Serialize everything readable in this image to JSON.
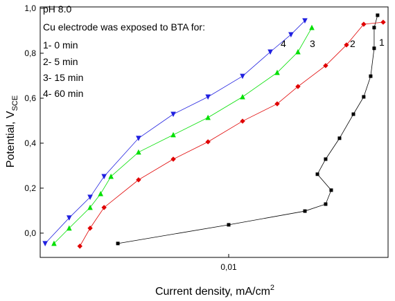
{
  "chart_data": {
    "type": "scatter",
    "xlabel": {
      "text": "Current density, mA/cm",
      "sup": "2"
    },
    "ylabel": {
      "text": "Potential, V",
      "sub": "SCE"
    },
    "annotations": [
      "pH 8.0",
      "Cu electrode was exposed to BTA for:",
      "1- 0 min",
      "2- 5 min",
      "3- 15 min",
      "4- 60 min"
    ],
    "xscale": "log",
    "xlim": [
      0.00225,
      0.0353
    ],
    "ylim": [
      -0.108,
      1.006
    ],
    "xticks": [
      {
        "value": 0.01,
        "label": "0,01"
      }
    ],
    "yticks": [
      {
        "value": 0,
        "label": "0,0"
      },
      {
        "value": 0.2,
        "label": "0,2"
      },
      {
        "value": 0.4,
        "label": "0,4"
      },
      {
        "value": 0.6,
        "label": "0,6"
      },
      {
        "value": 0.8,
        "label": "0,8"
      },
      {
        "value": 1.0,
        "label": "1,0"
      }
    ],
    "series": [
      {
        "name": "1",
        "color": "#000000",
        "marker": "square",
        "x": [
          0.00416,
          0.01,
          0.01828,
          0.02154,
          0.02251,
          0.02018,
          0.02154,
          0.02404,
          0.02683,
          0.02911,
          0.03076,
          0.03162,
          0.03162,
          0.03249
        ],
        "values": [
          -0.046,
          0.037,
          0.098,
          0.129,
          0.191,
          0.262,
          0.329,
          0.422,
          0.529,
          0.606,
          0.698,
          0.822,
          0.914,
          0.969
        ]
      },
      {
        "name": "2",
        "color": "#e00000",
        "marker": "diamond",
        "x": [
          0.00308,
          0.00334,
          0.00373,
          0.0049,
          0.00645,
          0.00849,
          0.01116,
          0.01468,
          0.0173,
          0.02154,
          0.0254,
          0.02911,
          0.03396
        ],
        "values": [
          -0.058,
          0.022,
          0.114,
          0.237,
          0.329,
          0.406,
          0.498,
          0.575,
          0.652,
          0.745,
          0.837,
          0.929,
          0.938
        ]
      },
      {
        "name": "3",
        "color": "#00e000",
        "marker": "triangle-up",
        "x": [
          0.00251,
          0.00283,
          0.00334,
          0.00363,
          0.00394,
          0.0049,
          0.00645,
          0.00849,
          0.01116,
          0.01468,
          0.0173,
          0.01931
        ],
        "values": [
          -0.046,
          0.022,
          0.114,
          0.175,
          0.252,
          0.36,
          0.437,
          0.514,
          0.606,
          0.714,
          0.806,
          0.914
        ]
      },
      {
        "name": "4",
        "color": "#2020e0",
        "marker": "triangle-down",
        "x": [
          0.00234,
          0.00283,
          0.00334,
          0.00373,
          0.0049,
          0.00645,
          0.00849,
          0.01116,
          0.0139,
          0.01637,
          0.01828
        ],
        "values": [
          -0.046,
          0.068,
          0.16,
          0.252,
          0.422,
          0.529,
          0.606,
          0.698,
          0.806,
          0.883,
          0.945
        ]
      }
    ]
  }
}
